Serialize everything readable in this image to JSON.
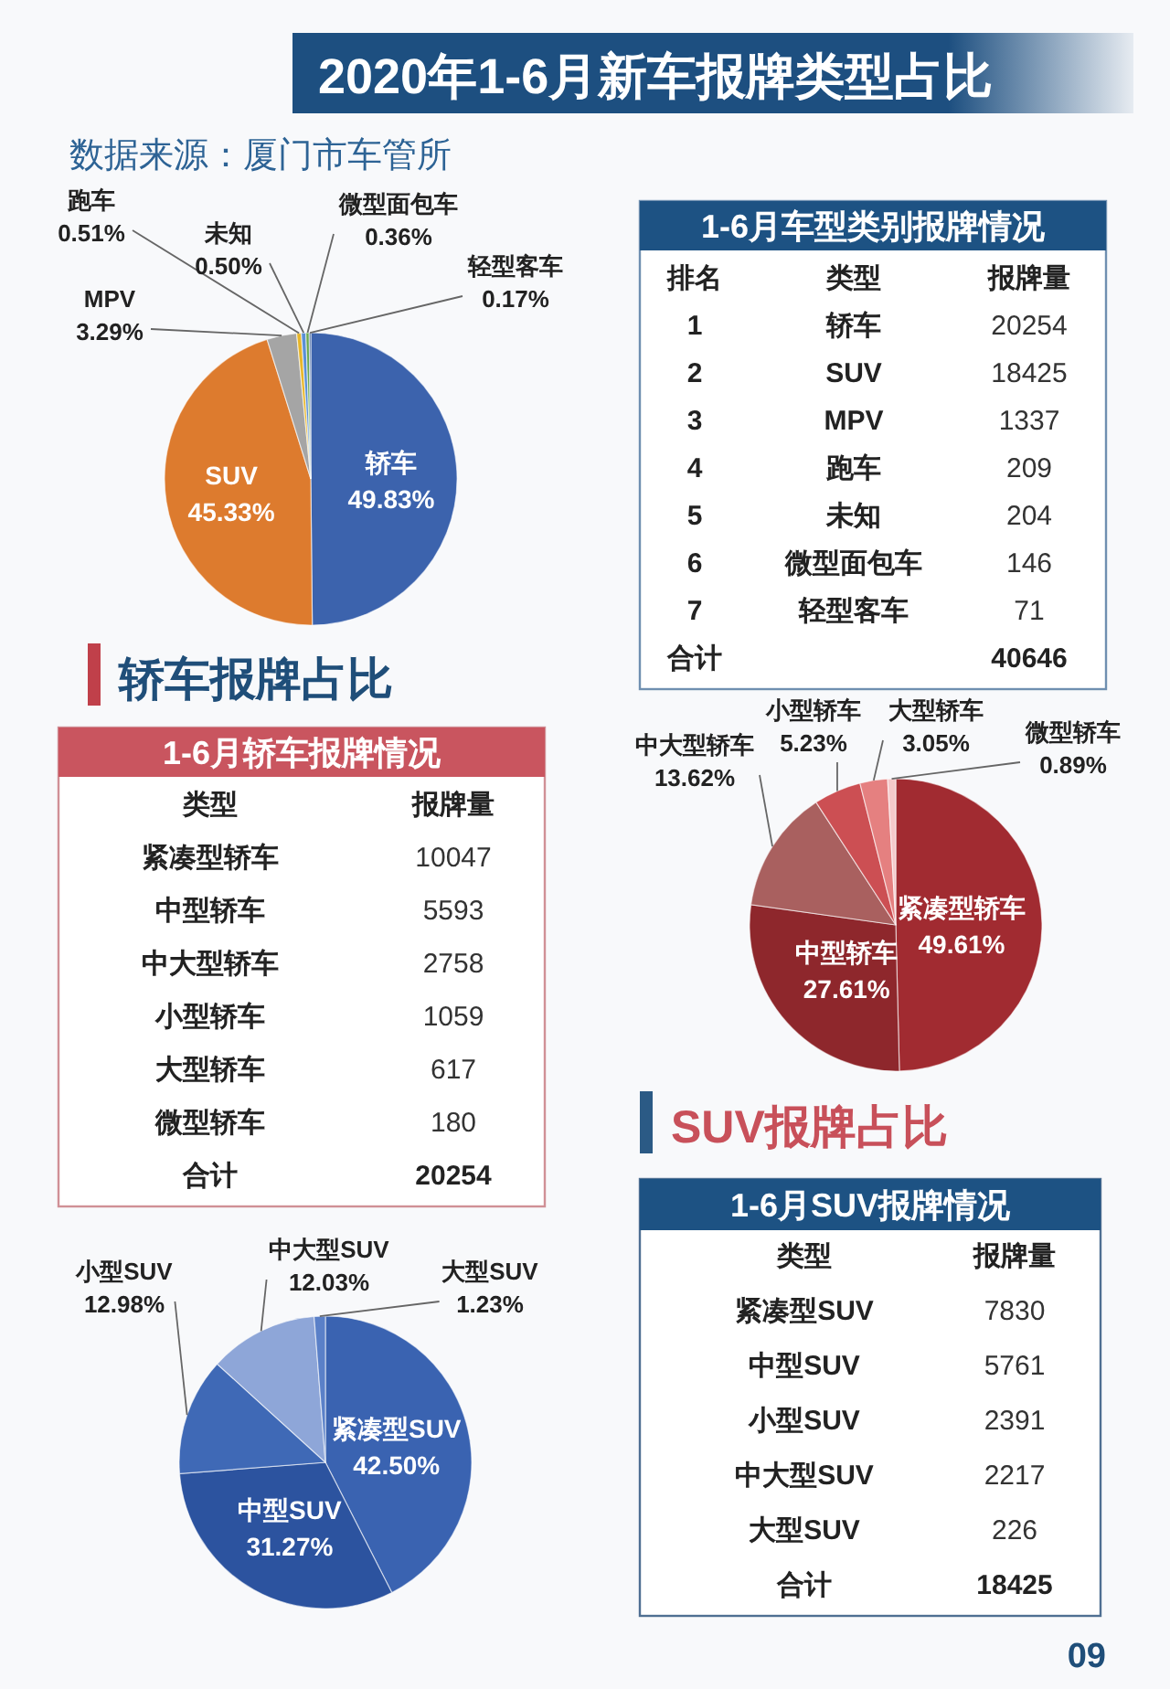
{
  "chart_data": [
    {
      "type": "pie",
      "title": "2020年1-6月新车报牌类型占比",
      "subtitle": "数据来源：厦门市车管所",
      "categories": [
        "轿车",
        "SUV",
        "MPV",
        "跑车",
        "未知",
        "微型面包车",
        "轻型客车"
      ],
      "values": [
        49.83,
        45.33,
        3.29,
        0.51,
        0.5,
        0.36,
        0.17
      ],
      "value_labels": [
        "49.83%",
        "45.33%",
        "3.29%",
        "0.51%",
        "0.50%",
        "0.36%",
        "0.17%"
      ],
      "colors": [
        "#3c63ad",
        "#dd7b2e",
        "#a5a5a5",
        "#e8b62a",
        "#5a8fd6",
        "#6aa84f",
        "#2f5597"
      ]
    },
    {
      "type": "other",
      "title": "1-6月车型类别报牌情况",
      "xlabel": "类型",
      "categories": [
        "轿车",
        "SUV",
        "MPV",
        "跑车",
        "未知",
        "微型面包车",
        "轻型客车"
      ],
      "series": [
        {
          "name": "排名",
          "values": [
            1,
            2,
            3,
            4,
            5,
            6,
            7
          ]
        },
        {
          "name": "报牌量",
          "values": [
            20254,
            18425,
            1337,
            209,
            204,
            146,
            71
          ]
        }
      ],
      "data_labels": true,
      "annotations": [
        "合计"
      ],
      "totals": [
        "40646"
      ]
    },
    {
      "type": "other",
      "title": "轿车报牌占比",
      "subtitle": "1-6月轿车报牌情况",
      "xlabel": "类型",
      "ylabel": "报牌量",
      "categories": [
        "紧凑型轿车",
        "中型轿车",
        "中大型轿车",
        "小型轿车",
        "大型轿车",
        "微型轿车"
      ],
      "values": [
        10047,
        5593,
        2758,
        1059,
        617,
        180
      ],
      "data_labels": true,
      "annotations": [
        "合计"
      ],
      "totals": [
        "20254"
      ]
    },
    {
      "type": "pie",
      "categories": [
        "紧凑型轿车",
        "中型轿车",
        "中大型轿车",
        "小型轿车",
        "大型轿车",
        "微型轿车"
      ],
      "values": [
        49.61,
        27.61,
        13.62,
        5.23,
        3.05,
        0.89
      ],
      "value_labels": [
        "49.61%",
        "27.61%",
        "13.62%",
        "5.23%",
        "3.05%",
        "0.89%"
      ],
      "colors": [
        "#a12b31",
        "#8e272c",
        "#a9605f",
        "#cc4f53",
        "#e58080",
        "#f5c9ca"
      ]
    },
    {
      "type": "other",
      "title": "SUV报牌占比",
      "subtitle": "1-6月SUV报牌情况",
      "xlabel": "类型",
      "ylabel": "报牌量",
      "categories": [
        "紧凑型SUV",
        "中型SUV",
        "小型SUV",
        "中大型SUV",
        "大型SUV"
      ],
      "values": [
        7830,
        5761,
        2391,
        2217,
        226
      ],
      "data_labels": true,
      "annotations": [
        "合计"
      ],
      "totals": [
        "18425"
      ]
    },
    {
      "type": "pie",
      "categories": [
        "紧凑型SUV",
        "中型SUV",
        "小型SUV",
        "中大型SUV",
        "大型SUV"
      ],
      "values": [
        42.5,
        31.27,
        12.98,
        12.03,
        1.23
      ],
      "value_labels": [
        "42.50%",
        "31.27%",
        "12.98%",
        "12.03%",
        "1.23%"
      ],
      "colors": [
        "#3a63b1",
        "#2c539f",
        "#3f69b6",
        "#8ea6d8",
        "#5a80c8"
      ],
      "annotations": [
        "09"
      ]
    }
  ]
}
